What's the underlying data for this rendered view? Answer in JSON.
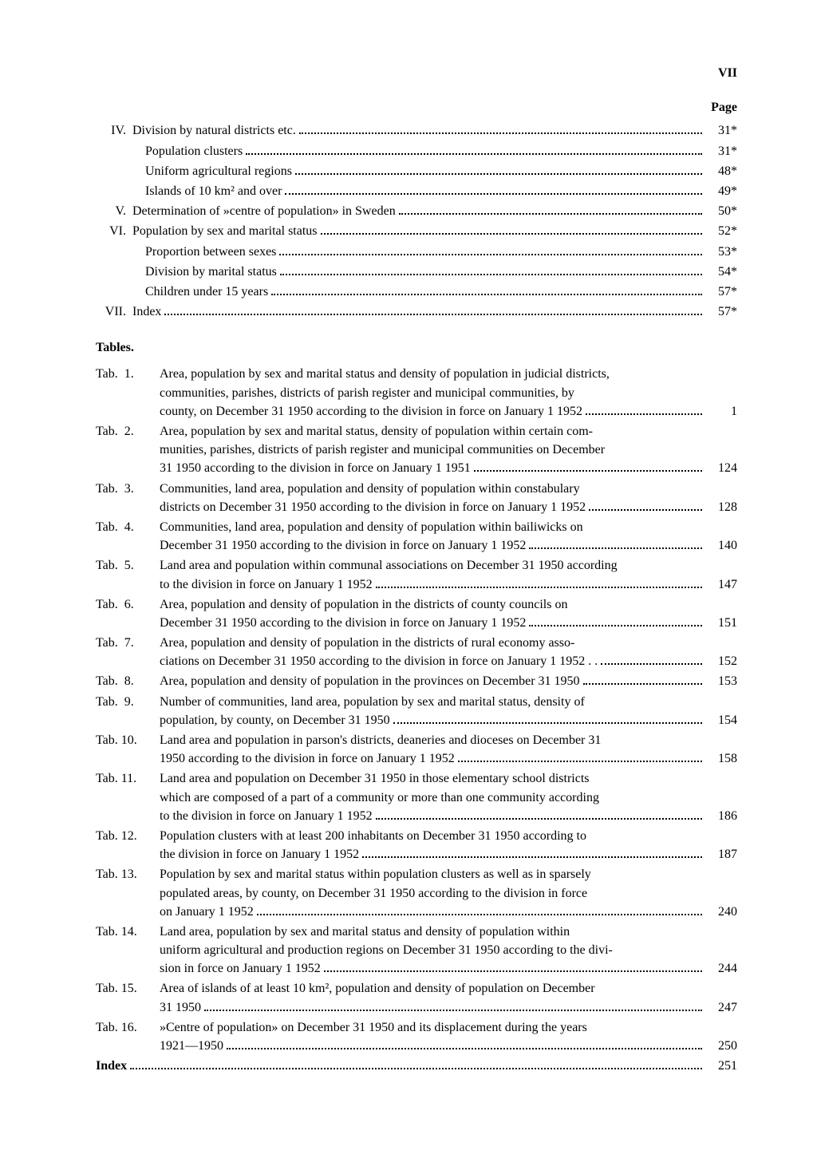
{
  "pageNumber": "VII",
  "pageHeader": "Page",
  "sections": [
    {
      "roman": "IV.",
      "text": "Division by natural districts etc.",
      "page": "31*"
    },
    {
      "roman": "",
      "text": "Population clusters",
      "page": "31*"
    },
    {
      "roman": "",
      "text": "Uniform agricultural regions",
      "page": "48*"
    },
    {
      "roman": "",
      "text": "Islands of 10 km² and over",
      "page": "49*"
    },
    {
      "roman": "V.",
      "text": "Determination of »centre of population» in Sweden",
      "page": "50*"
    },
    {
      "roman": "VI.",
      "text": "Population by sex and marital status",
      "page": "52*"
    },
    {
      "roman": "",
      "text": "Proportion between sexes",
      "page": "53*"
    },
    {
      "roman": "",
      "text": "Division by marital status",
      "page": "54*"
    },
    {
      "roman": "",
      "text": "Children under 15 years",
      "page": "57*"
    },
    {
      "roman": "VII.",
      "text": "Index",
      "page": "57*"
    }
  ],
  "tablesHeader": "Tables.",
  "tables": [
    {
      "label": "Tab.  1.",
      "lines": [
        "Area, population by sex and marital status and density of population in judicial districts,",
        "communities, parishes, districts of parish register and municipal communities, by"
      ],
      "lastLine": "county, on December 31 1950 according to the division in force on January 1 1952",
      "page": "1"
    },
    {
      "label": "Tab.  2.",
      "lines": [
        "Area, population by sex and marital status, density of population within certain com-",
        "munities, parishes, districts of parish register and municipal communities on December"
      ],
      "lastLine": "31 1950 according to the division in force on January 1 1951",
      "page": "124"
    },
    {
      "label": "Tab.  3.",
      "lines": [
        "Communities, land area, population and density of population within constabulary"
      ],
      "lastLine": "districts on December 31 1950 according to the division in force on January 1 1952",
      "page": "128"
    },
    {
      "label": "Tab.  4.",
      "lines": [
        "Communities, land area, population and density of population within bailiwicks on"
      ],
      "lastLine": "December 31 1950 according to the division in force on January 1 1952",
      "page": "140"
    },
    {
      "label": "Tab.  5.",
      "lines": [
        "Land area and population within communal associations on December 31 1950 according"
      ],
      "lastLine": "to the division in force on January 1 1952",
      "page": "147"
    },
    {
      "label": "Tab.  6.",
      "lines": [
        "Area, population and density of population in the districts of county councils on"
      ],
      "lastLine": "December 31 1950 according to the division in force on January 1 1952",
      "page": "151"
    },
    {
      "label": "Tab.  7.",
      "lines": [
        "Area, population and density of population in the districts of rural economy asso-"
      ],
      "lastLine": "ciations on December 31 1950 according to the division in force on January 1 1952 . .",
      "page": "152"
    },
    {
      "label": "Tab.  8.",
      "lines": [],
      "lastLine": "Area, population and density of population in the provinces on December 31 1950",
      "page": "153"
    },
    {
      "label": "Tab.  9.",
      "lines": [
        "Number of communities, land area, population by sex and marital status, density of"
      ],
      "lastLine": "population, by county, on December 31 1950",
      "page": "154"
    },
    {
      "label": "Tab. 10.",
      "lines": [
        "Land area and population in parson's districts, deaneries and dioceses on December 31"
      ],
      "lastLine": "1950 according to the division in force on January 1 1952",
      "page": "158"
    },
    {
      "label": "Tab. 11.",
      "lines": [
        "Land area and population on December 31 1950 in those elementary school districts",
        "which are composed of a part of a community or more than one community according"
      ],
      "lastLine": "to the division in force on January 1 1952",
      "page": "186"
    },
    {
      "label": "Tab. 12.",
      "lines": [
        "Population clusters with at least 200 inhabitants on December 31 1950 according to"
      ],
      "lastLine": "the division in force on January 1 1952",
      "page": "187"
    },
    {
      "label": "Tab. 13.",
      "lines": [
        "Population by sex and marital status within population clusters as well as in sparsely",
        "populated areas, by county, on December 31 1950 according to the division in force"
      ],
      "lastLine": "on January 1 1952",
      "page": "240"
    },
    {
      "label": "Tab. 14.",
      "lines": [
        "Land area, population by sex and marital status and density of population within",
        "uniform agricultural and production regions on December 31 1950 according to the divi-"
      ],
      "lastLine": "sion in force on January 1 1952",
      "page": "244"
    },
    {
      "label": "Tab. 15.",
      "lines": [
        "Area of islands of at least 10 km², population and density of population on December"
      ],
      "lastLine": "31 1950",
      "page": "247"
    },
    {
      "label": "Tab. 16.",
      "lines": [
        "»Centre of population» on December 31 1950 and its displacement during the years"
      ],
      "lastLine": "1921—1950",
      "page": "250"
    }
  ],
  "indexLabel": "Index",
  "indexPage": "251"
}
